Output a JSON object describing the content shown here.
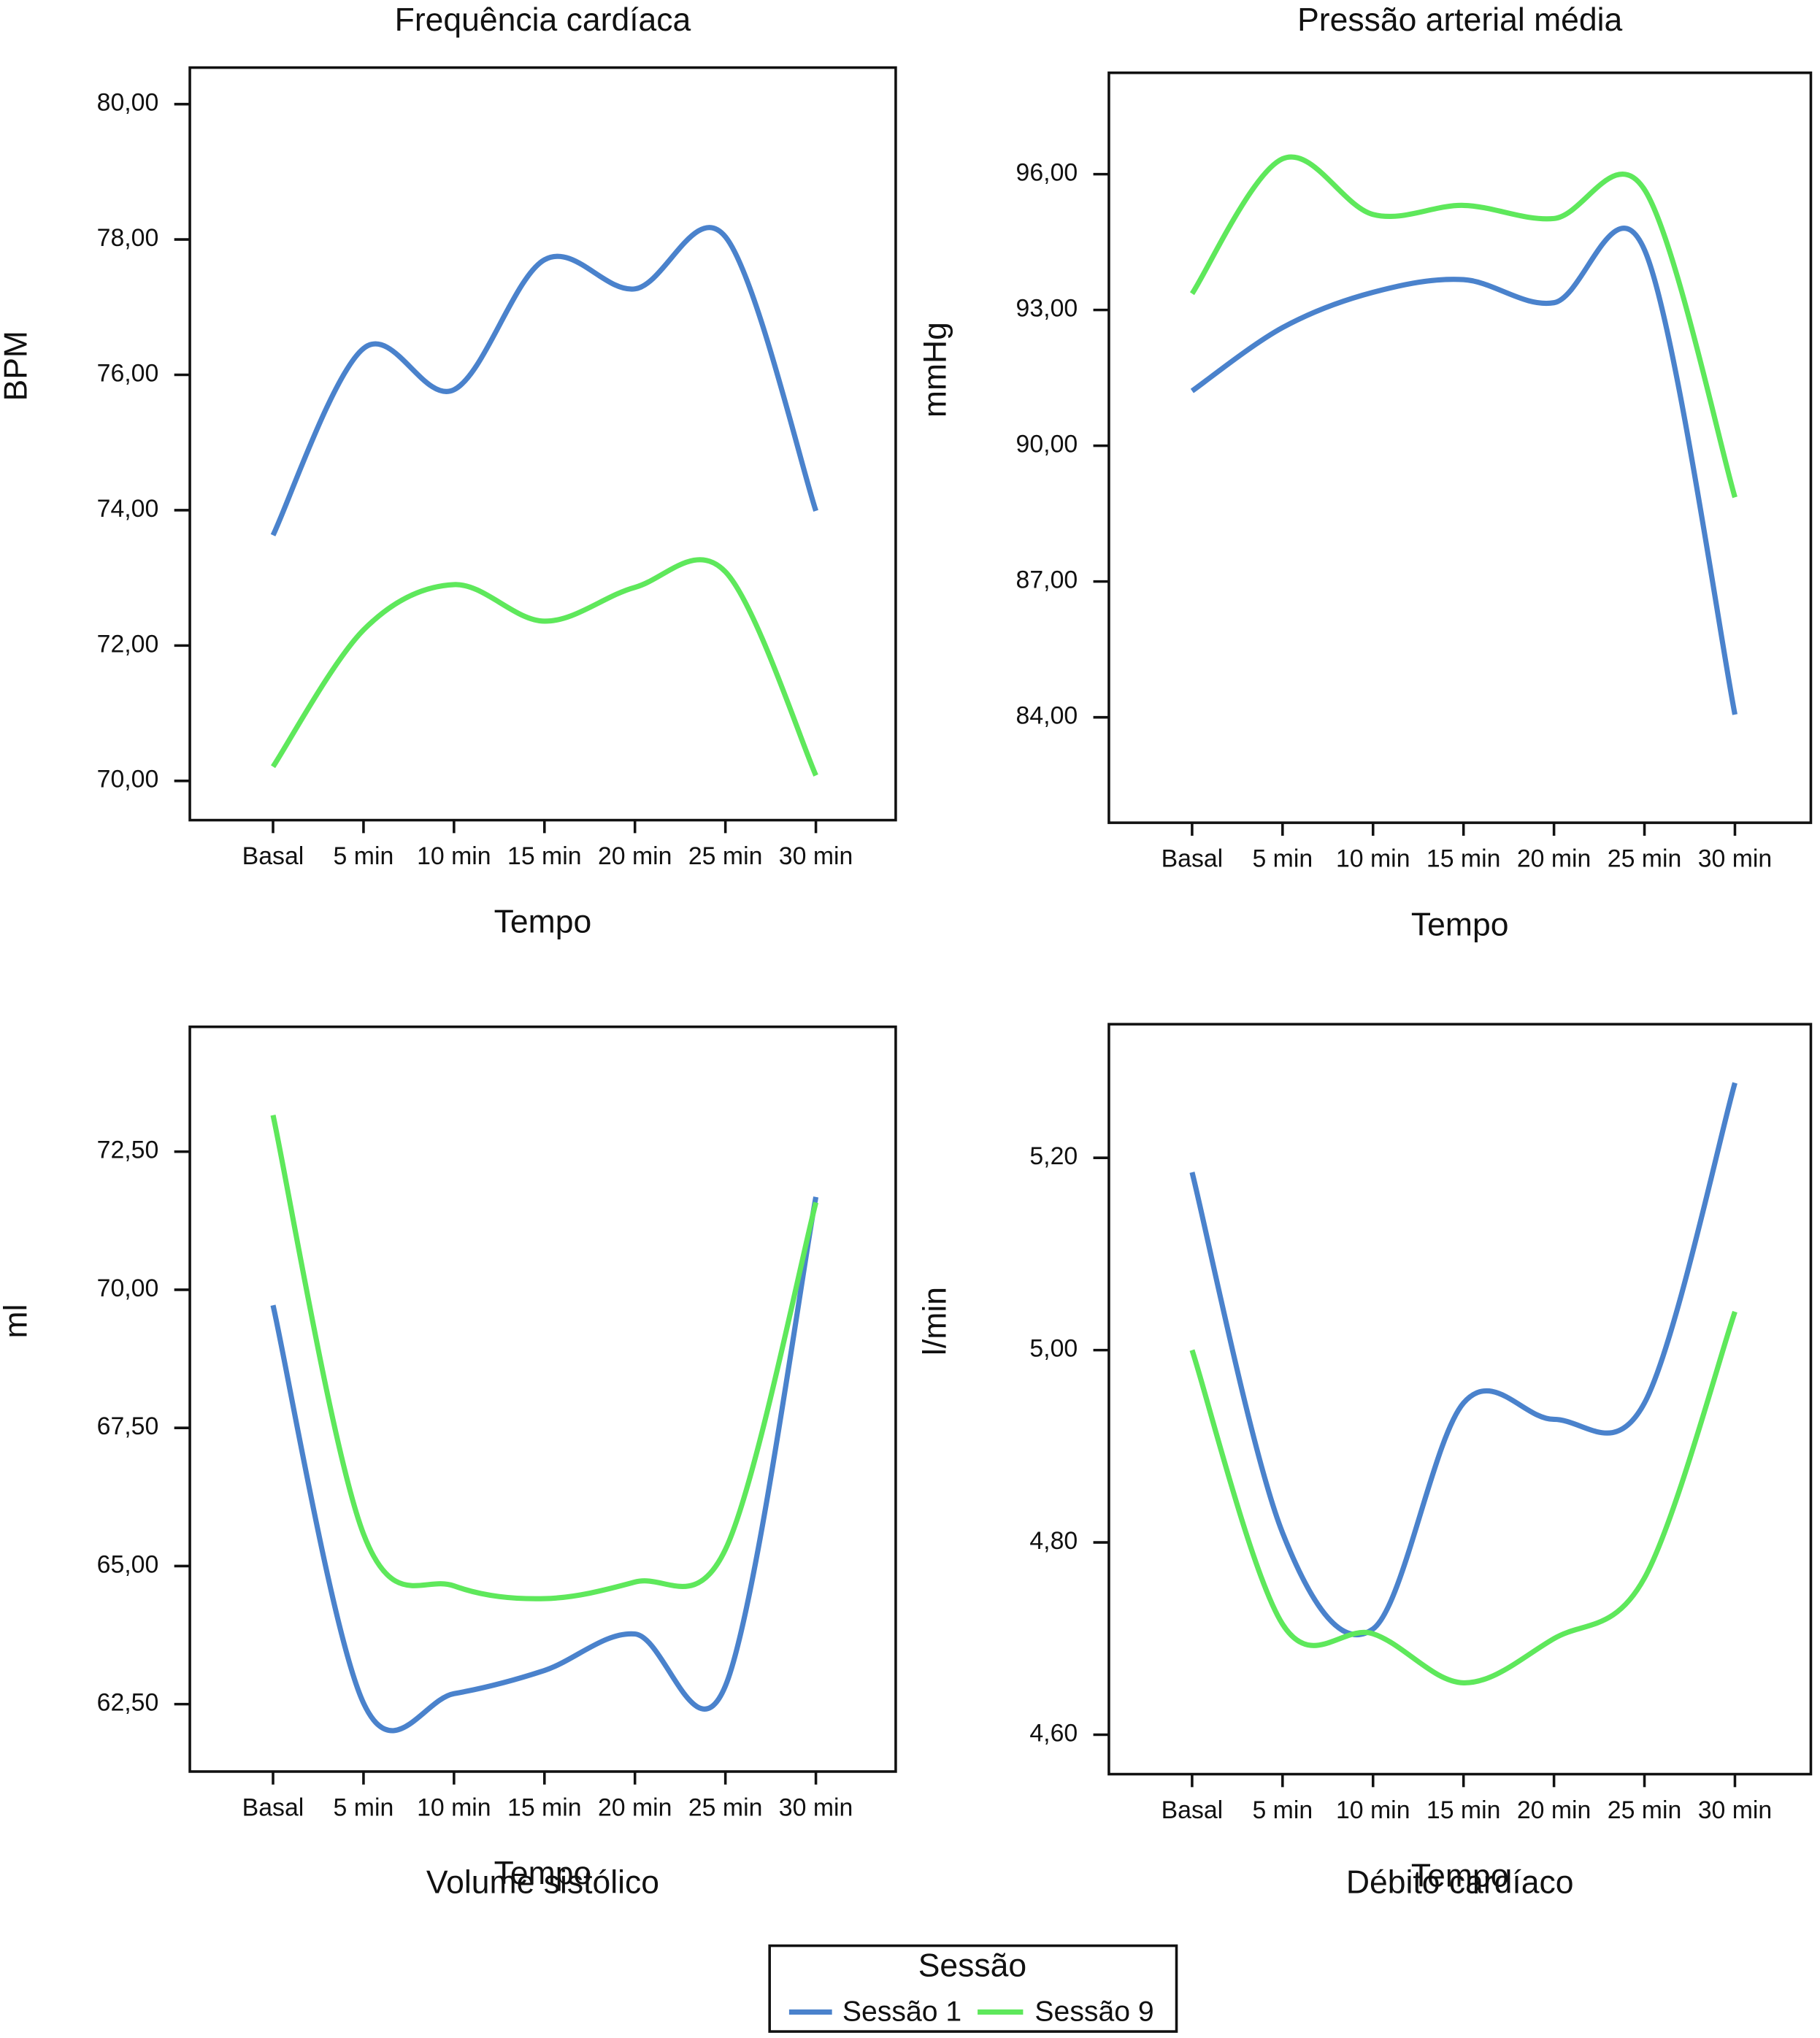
{
  "chart_data": [
    {
      "type": "line",
      "title": "Frequência cardíaca",
      "x_label": "Tempo",
      "y_label": "BPM",
      "categories": [
        "Basal",
        "5 min",
        "10 min",
        "15 min",
        "20 min",
        "25 min",
        "30 min"
      ],
      "series": [
        {
          "name": "Sessão 1",
          "color": "#4a82cc",
          "values": [
            73.63,
            76.39,
            75.78,
            77.7,
            77.27,
            78.04,
            73.99
          ]
        },
        {
          "name": "Sessão 9",
          "color": "#5ee85b",
          "values": [
            70.21,
            72.23,
            72.9,
            72.36,
            72.86,
            73.09,
            70.08
          ]
        }
      ],
      "ylim": [
        69.42,
        80.54
      ],
      "yticks": [
        {
          "value": 70,
          "label": "70,00"
        },
        {
          "value": 72,
          "label": "72,00"
        },
        {
          "value": 74,
          "label": "74,00"
        },
        {
          "value": 76,
          "label": "76,00"
        },
        {
          "value": 78,
          "label": "78,00"
        },
        {
          "value": 80,
          "label": "80,00"
        }
      ]
    },
    {
      "type": "line",
      "title": "Pressão arterial média",
      "x_label": "Tempo",
      "y_label": "mmHg",
      "categories": [
        "Basal",
        "5 min",
        "10 min",
        "15 min",
        "20 min",
        "25 min",
        "30 min"
      ],
      "series": [
        {
          "name": "Sessão 1",
          "color": "#4a82cc",
          "values": [
            91.21,
            92.61,
            93.39,
            93.67,
            93.16,
            94.33,
            84.06
          ]
        },
        {
          "name": "Sessão 9",
          "color": "#5ee85b",
          "values": [
            93.36,
            96.34,
            95.11,
            95.31,
            95.02,
            95.66,
            88.86
          ]
        }
      ],
      "ylim": [
        81.67,
        98.24
      ],
      "yticks": [
        {
          "value": 84,
          "label": "84,00"
        },
        {
          "value": 87,
          "label": "87,00"
        },
        {
          "value": 90,
          "label": "90,00"
        },
        {
          "value": 93,
          "label": "93,00"
        },
        {
          "value": 96,
          "label": "96,00"
        }
      ]
    },
    {
      "type": "line",
      "title": "Volume sistólico",
      "x_label": "Tempo",
      "y_label": "ml",
      "categories": [
        "Basal",
        "5 min",
        "10 min",
        "15 min",
        "20 min",
        "25 min",
        "30 min"
      ],
      "series": [
        {
          "name": "Sessão 1",
          "color": "#4a82cc",
          "values": [
            69.72,
            62.52,
            62.69,
            63.11,
            63.77,
            62.83,
            71.68
          ]
        },
        {
          "name": "Sessão 9",
          "color": "#5ee85b",
          "values": [
            73.16,
            65.58,
            64.64,
            64.41,
            64.71,
            65.3,
            71.58
          ]
        }
      ],
      "ylim": [
        61.28,
        74.76
      ],
      "yticks": [
        {
          "value": 62.5,
          "label": "62,50"
        },
        {
          "value": 65,
          "label": "65,00"
        },
        {
          "value": 67.5,
          "label": "67,50"
        },
        {
          "value": 70,
          "label": "70,00"
        },
        {
          "value": 72.5,
          "label": "72,50"
        }
      ]
    },
    {
      "type": "line",
      "title": "Débito cardíaco",
      "x_label": "Tempo",
      "y_label": "l/min",
      "categories": [
        "Basal",
        "5 min",
        "10 min",
        "15 min",
        "20 min",
        "25 min",
        "30 min"
      ],
      "series": [
        {
          "name": "Sessão 1",
          "color": "#4a82cc",
          "values": [
            5.185,
            4.81,
            4.71,
            4.945,
            4.928,
            4.945,
            5.278
          ]
        },
        {
          "name": "Sessão 9",
          "color": "#5ee85b",
          "values": [
            5.0,
            4.715,
            4.705,
            4.654,
            4.7,
            4.763,
            5.04
          ]
        }
      ],
      "ylim": [
        4.559,
        5.339
      ],
      "yticks": [
        {
          "value": 4.6,
          "label": "4,60"
        },
        {
          "value": 4.8,
          "label": "4,80"
        },
        {
          "value": 5.0,
          "label": "5,00"
        },
        {
          "value": 5.2,
          "label": "5,20"
        }
      ]
    }
  ],
  "legend_title": "Sessão"
}
